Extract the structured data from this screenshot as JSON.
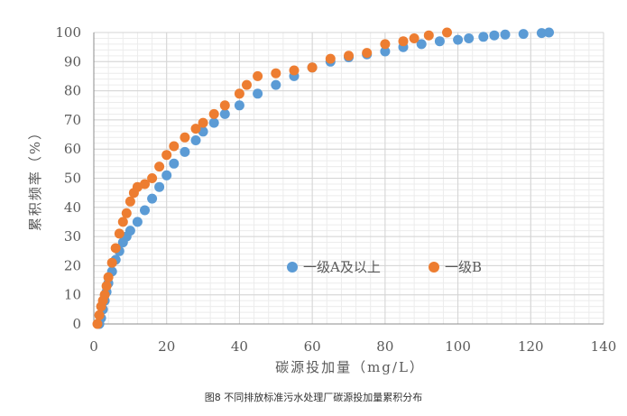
{
  "caption": "图8  不同排放标准污水处理厂碳源投加量累积分布",
  "chart_data": {
    "type": "scatter",
    "title": "",
    "xlabel": "碳源投加量（mg/L）",
    "ylabel": "累积频率（%）",
    "xlim": [
      0,
      140
    ],
    "ylim": [
      0,
      100
    ],
    "xticks": [
      0,
      20,
      40,
      60,
      80,
      100,
      120,
      140
    ],
    "yticks": [
      0,
      10,
      20,
      30,
      40,
      50,
      60,
      70,
      80,
      90,
      100
    ],
    "grid": true,
    "legend_position": "center-right",
    "colors": {
      "一级A及以上": "#5B9BD5",
      "一级B": "#ED7D31"
    },
    "series": [
      {
        "name": "一级A及以上",
        "color": "#5B9BD5",
        "x": [
          1.5,
          2,
          2.5,
          3,
          3.5,
          4,
          5,
          6,
          7,
          8,
          9,
          10,
          12,
          14,
          16,
          18,
          20,
          22,
          25,
          28,
          30,
          33,
          36,
          40,
          45,
          50,
          55,
          60,
          65,
          70,
          75,
          80,
          85,
          90,
          95,
          100,
          103,
          107,
          110,
          113,
          118,
          123,
          125
        ],
        "y": [
          0,
          2,
          5,
          8,
          11,
          14,
          18,
          22,
          25,
          28,
          30,
          32,
          35,
          39,
          43,
          47,
          51,
          55,
          59,
          63,
          66,
          69,
          72,
          75,
          79,
          82,
          85,
          88,
          90,
          91.5,
          92.5,
          93.5,
          95,
          96,
          97,
          97.5,
          98,
          98.5,
          99,
          99.3,
          99.5,
          99.8,
          100
        ]
      },
      {
        "name": "一级B",
        "color": "#ED7D31",
        "x": [
          1,
          1.5,
          2,
          2.5,
          3,
          3.5,
          4,
          5,
          6,
          7,
          8,
          9,
          10,
          11,
          12,
          14,
          16,
          18,
          20,
          22,
          25,
          28,
          30,
          33,
          36,
          40,
          42,
          45,
          50,
          55,
          60,
          65,
          70,
          75,
          80,
          85,
          88,
          92,
          97
        ],
        "y": [
          0,
          3,
          6,
          8,
          10,
          13,
          16,
          21,
          26,
          31,
          35,
          38,
          42,
          45,
          47,
          48,
          50,
          54,
          58,
          61,
          64,
          67,
          69,
          72,
          75,
          79,
          82,
          85,
          86,
          87,
          88,
          91,
          92,
          93,
          96,
          97,
          98,
          99,
          100
        ]
      }
    ]
  }
}
